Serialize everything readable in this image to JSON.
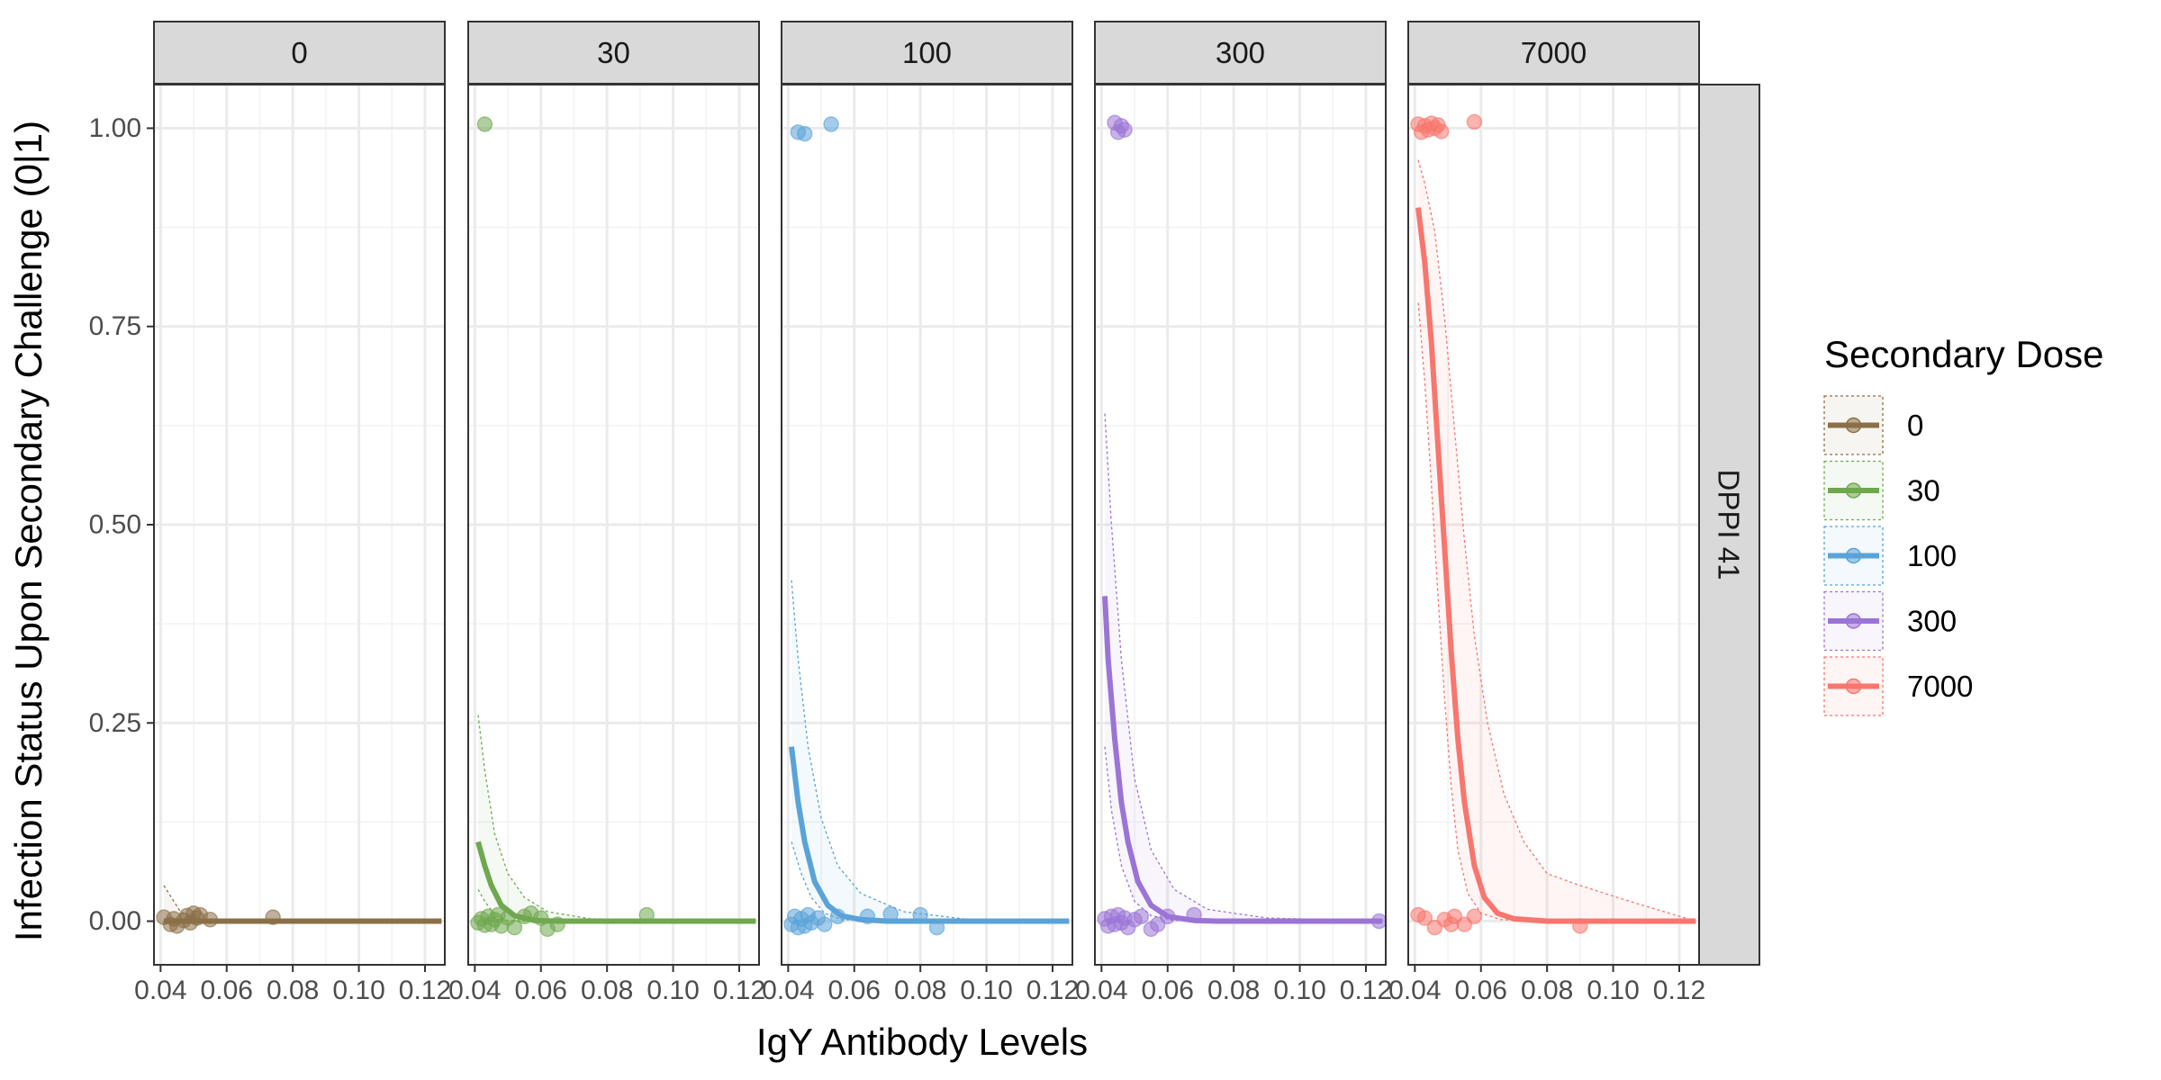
{
  "chart_data": {
    "type": "scatter",
    "title": "",
    "xlabel": "IgY Antibody Levels",
    "ylabel": "Infection Status Upon Secondary Challenge (0|1)",
    "xlim": [
      0.038,
      0.126
    ],
    "ylim": [
      -0.055,
      1.055
    ],
    "x_ticks": [
      0.04,
      0.06,
      0.08,
      0.1,
      0.12
    ],
    "x_tick_labels": [
      "0.04",
      "0.06",
      "0.08",
      "0.10",
      "0.12"
    ],
    "y_ticks": [
      0,
      0.25,
      0.5,
      0.75,
      1.0
    ],
    "y_tick_labels": [
      "0.00",
      "0.25",
      "0.50",
      "0.75",
      "1.00"
    ],
    "grid": true,
    "row_strip": "DPPI 41",
    "legend": {
      "title": "Secondary Dose",
      "position": "right",
      "entries": [
        "0",
        "30",
        "100",
        "300",
        "7000"
      ]
    },
    "series": [
      {
        "name": "0",
        "panel": "0",
        "color": "#8B6F47",
        "points": [
          [
            0.041,
            0.005
          ],
          [
            0.043,
            -0.004
          ],
          [
            0.044,
            0.003
          ],
          [
            0.045,
            -0.006
          ],
          [
            0.047,
            0.001
          ],
          [
            0.048,
            0.007
          ],
          [
            0.049,
            -0.002
          ],
          [
            0.05,
            0.01
          ],
          [
            0.051,
            0.004
          ],
          [
            0.052,
            0.008
          ],
          [
            0.055,
            0.002
          ],
          [
            0.074,
            0.005
          ]
        ],
        "fit": [
          [
            0.041,
            0.0
          ],
          [
            0.125,
            0.0
          ]
        ],
        "ci_lower": [
          [
            0.041,
            0.0
          ],
          [
            0.125,
            0.0
          ]
        ],
        "ci_upper": [
          [
            0.041,
            0.045
          ],
          [
            0.046,
            0.012
          ],
          [
            0.05,
            0.003
          ],
          [
            0.06,
            0.0
          ],
          [
            0.125,
            0.0
          ]
        ]
      },
      {
        "name": "30",
        "panel": "30",
        "color": "#6FA84E",
        "points": [
          [
            0.043,
            1.005
          ],
          [
            0.041,
            -0.002
          ],
          [
            0.042,
            0.003
          ],
          [
            0.043,
            -0.005
          ],
          [
            0.044,
            0.006
          ],
          [
            0.045,
            -0.004
          ],
          [
            0.046,
            0.002
          ],
          [
            0.047,
            0.008
          ],
          [
            0.048,
            -0.006
          ],
          [
            0.05,
            0.004
          ],
          [
            0.052,
            -0.008
          ],
          [
            0.055,
            0.006
          ],
          [
            0.057,
            0.01
          ],
          [
            0.06,
            0.004
          ],
          [
            0.062,
            -0.01
          ],
          [
            0.065,
            -0.004
          ],
          [
            0.092,
            0.008
          ]
        ],
        "fit": [
          [
            0.041,
            0.1
          ],
          [
            0.043,
            0.07
          ],
          [
            0.045,
            0.045
          ],
          [
            0.048,
            0.02
          ],
          [
            0.052,
            0.007
          ],
          [
            0.058,
            0.001
          ],
          [
            0.065,
            0.0
          ],
          [
            0.125,
            0.0
          ]
        ],
        "ci_lower": [
          [
            0.041,
            0.04
          ],
          [
            0.043,
            0.025
          ],
          [
            0.046,
            0.008
          ],
          [
            0.05,
            0.001
          ],
          [
            0.056,
            0.0
          ],
          [
            0.125,
            0.0
          ]
        ],
        "ci_upper": [
          [
            0.041,
            0.26
          ],
          [
            0.043,
            0.19
          ],
          [
            0.046,
            0.11
          ],
          [
            0.05,
            0.06
          ],
          [
            0.055,
            0.03
          ],
          [
            0.062,
            0.012
          ],
          [
            0.075,
            0.003
          ],
          [
            0.125,
            0.0
          ]
        ]
      },
      {
        "name": "100",
        "panel": "100",
        "color": "#5AA3D8",
        "points": [
          [
            0.043,
            0.995
          ],
          [
            0.045,
            0.993
          ],
          [
            0.053,
            1.005
          ],
          [
            0.041,
            -0.004
          ],
          [
            0.042,
            0.006
          ],
          [
            0.043,
            -0.008
          ],
          [
            0.044,
            0.003
          ],
          [
            0.045,
            -0.006
          ],
          [
            0.046,
            0.008
          ],
          [
            0.047,
            -0.002
          ],
          [
            0.049,
            0.004
          ],
          [
            0.051,
            -0.004
          ],
          [
            0.055,
            0.006
          ],
          [
            0.064,
            0.006
          ],
          [
            0.071,
            0.009
          ],
          [
            0.08,
            0.008
          ],
          [
            0.085,
            -0.008
          ]
        ],
        "fit": [
          [
            0.041,
            0.22
          ],
          [
            0.043,
            0.15
          ],
          [
            0.045,
            0.1
          ],
          [
            0.048,
            0.05
          ],
          [
            0.052,
            0.02
          ],
          [
            0.056,
            0.007
          ],
          [
            0.062,
            0.002
          ],
          [
            0.07,
            0.0
          ],
          [
            0.125,
            0.0
          ]
        ],
        "ci_lower": [
          [
            0.041,
            0.1
          ],
          [
            0.044,
            0.06
          ],
          [
            0.047,
            0.03
          ],
          [
            0.051,
            0.01
          ],
          [
            0.056,
            0.002
          ],
          [
            0.065,
            0.0
          ],
          [
            0.125,
            0.0
          ]
        ],
        "ci_upper": [
          [
            0.041,
            0.43
          ],
          [
            0.043,
            0.33
          ],
          [
            0.046,
            0.22
          ],
          [
            0.05,
            0.13
          ],
          [
            0.055,
            0.07
          ],
          [
            0.062,
            0.035
          ],
          [
            0.075,
            0.012
          ],
          [
            0.095,
            0.002
          ],
          [
            0.125,
            0.0
          ]
        ]
      },
      {
        "name": "300",
        "panel": "300",
        "color": "#9B74D6",
        "points": [
          [
            0.044,
            1.007
          ],
          [
            0.045,
            0.995
          ],
          [
            0.046,
            1.003
          ],
          [
            0.047,
            0.998
          ],
          [
            0.041,
            0.003
          ],
          [
            0.042,
            -0.006
          ],
          [
            0.043,
            0.006
          ],
          [
            0.044,
            -0.004
          ],
          [
            0.045,
            0.008
          ],
          [
            0.046,
            -0.002
          ],
          [
            0.047,
            0.004
          ],
          [
            0.048,
            -0.008
          ],
          [
            0.05,
            0.002
          ],
          [
            0.052,
            0.006
          ],
          [
            0.055,
            -0.01
          ],
          [
            0.057,
            -0.004
          ],
          [
            0.06,
            0.006
          ],
          [
            0.068,
            0.008
          ],
          [
            0.124,
            0.0
          ]
        ],
        "fit": [
          [
            0.041,
            0.41
          ],
          [
            0.042,
            0.33
          ],
          [
            0.044,
            0.23
          ],
          [
            0.046,
            0.15
          ],
          [
            0.048,
            0.1
          ],
          [
            0.051,
            0.05
          ],
          [
            0.055,
            0.02
          ],
          [
            0.06,
            0.006
          ],
          [
            0.068,
            0.001
          ],
          [
            0.075,
            0.0
          ],
          [
            0.125,
            0.0
          ]
        ],
        "ci_lower": [
          [
            0.041,
            0.22
          ],
          [
            0.043,
            0.14
          ],
          [
            0.046,
            0.07
          ],
          [
            0.05,
            0.025
          ],
          [
            0.055,
            0.007
          ],
          [
            0.062,
            0.001
          ],
          [
            0.07,
            0.0
          ],
          [
            0.125,
            0.0
          ]
        ],
        "ci_upper": [
          [
            0.041,
            0.64
          ],
          [
            0.043,
            0.5
          ],
          [
            0.046,
            0.33
          ],
          [
            0.05,
            0.18
          ],
          [
            0.055,
            0.09
          ],
          [
            0.062,
            0.04
          ],
          [
            0.072,
            0.015
          ],
          [
            0.09,
            0.004
          ],
          [
            0.125,
            0.0
          ]
        ]
      },
      {
        "name": "7000",
        "panel": "7000",
        "color": "#F8766D",
        "points": [
          [
            0.041,
            1.005
          ],
          [
            0.042,
            0.995
          ],
          [
            0.043,
            1.003
          ],
          [
            0.044,
            0.998
          ],
          [
            0.045,
            1.006
          ],
          [
            0.046,
            1.0
          ],
          [
            0.047,
            1.004
          ],
          [
            0.048,
            0.996
          ],
          [
            0.058,
            1.008
          ],
          [
            0.041,
            0.008
          ],
          [
            0.043,
            0.004
          ],
          [
            0.046,
            -0.008
          ],
          [
            0.049,
            0.002
          ],
          [
            0.051,
            -0.004
          ],
          [
            0.052,
            0.006
          ],
          [
            0.055,
            -0.004
          ],
          [
            0.058,
            0.006
          ],
          [
            0.09,
            -0.006
          ]
        ],
        "fit": [
          [
            0.041,
            0.9
          ],
          [
            0.043,
            0.83
          ],
          [
            0.045,
            0.73
          ],
          [
            0.047,
            0.6
          ],
          [
            0.049,
            0.47
          ],
          [
            0.051,
            0.34
          ],
          [
            0.053,
            0.23
          ],
          [
            0.055,
            0.15
          ],
          [
            0.058,
            0.07
          ],
          [
            0.061,
            0.03
          ],
          [
            0.065,
            0.01
          ],
          [
            0.07,
            0.003
          ],
          [
            0.08,
            0.0
          ],
          [
            0.125,
            0.0
          ]
        ],
        "ci_lower": [
          [
            0.041,
            0.78
          ],
          [
            0.043,
            0.68
          ],
          [
            0.045,
            0.55
          ],
          [
            0.047,
            0.41
          ],
          [
            0.049,
            0.28
          ],
          [
            0.051,
            0.17
          ],
          [
            0.053,
            0.09
          ],
          [
            0.056,
            0.035
          ],
          [
            0.06,
            0.01
          ],
          [
            0.066,
            0.002
          ],
          [
            0.075,
            0.0
          ],
          [
            0.125,
            0.0
          ]
        ],
        "ci_upper": [
          [
            0.041,
            0.96
          ],
          [
            0.043,
            0.93
          ],
          [
            0.046,
            0.87
          ],
          [
            0.049,
            0.76
          ],
          [
            0.052,
            0.62
          ],
          [
            0.055,
            0.48
          ],
          [
            0.058,
            0.36
          ],
          [
            0.062,
            0.25
          ],
          [
            0.067,
            0.16
          ],
          [
            0.073,
            0.1
          ],
          [
            0.08,
            0.06
          ],
          [
            0.09,
            0.045
          ],
          [
            0.105,
            0.025
          ],
          [
            0.125,
            0.0
          ]
        ]
      }
    ]
  }
}
